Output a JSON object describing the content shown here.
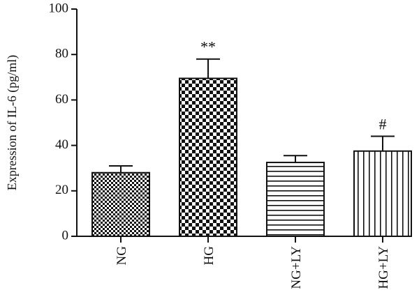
{
  "chart_data": {
    "type": "bar",
    "categories": [
      "NG",
      "HG",
      "NG+LY",
      "HG+LY"
    ],
    "values": [
      28,
      69.5,
      32.5,
      37.5
    ],
    "errors": [
      3,
      8.5,
      3,
      6.5
    ],
    "annotations": [
      "",
      "**",
      "",
      "#"
    ],
    "patterns": [
      "checker-small",
      "checker-large",
      "horizontal-lines",
      "vertical-lines"
    ],
    "title": "",
    "xlabel": "",
    "ylabel": "Expression of IL-6 (pg/ml)",
    "ylim": [
      0,
      100
    ],
    "yticks": [
      0,
      20,
      40,
      60,
      80,
      100
    ],
    "grid": false,
    "legend": "none",
    "colors": {
      "ink": "#111111",
      "background": "#ffffff"
    }
  }
}
